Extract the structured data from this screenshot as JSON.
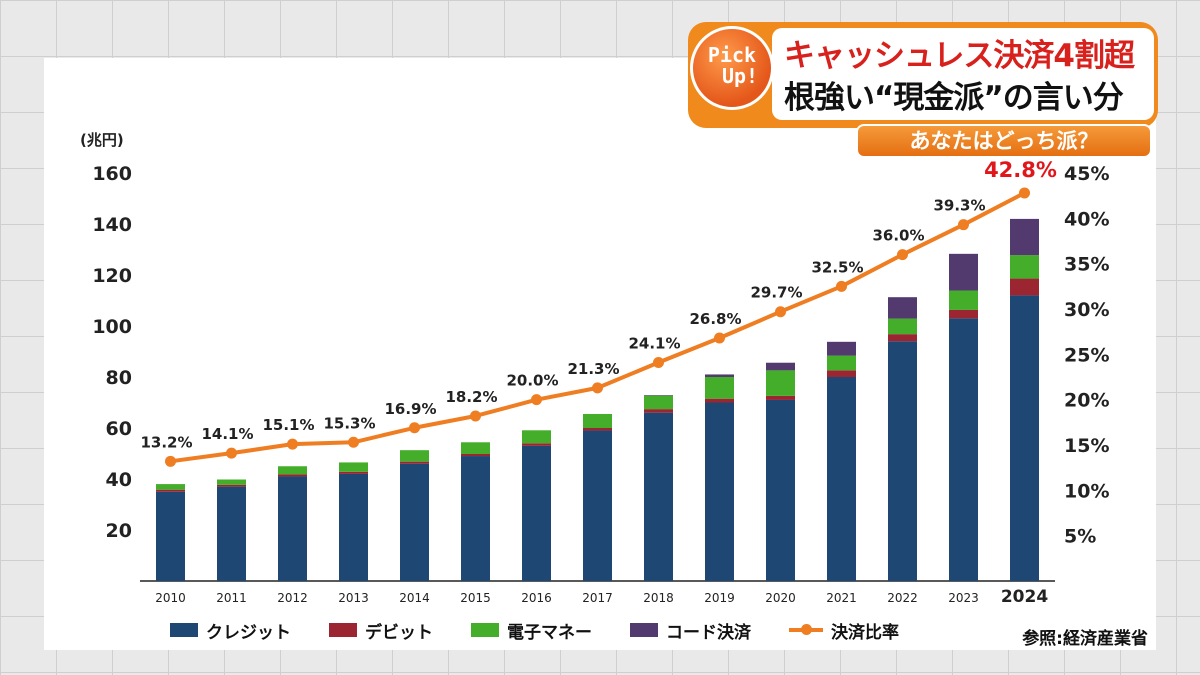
{
  "header": {
    "pickup_line1": "Pick",
    "pickup_line2": "Up!",
    "headline1": "キャッシュレス決済4割超",
    "headline2": "根強い“現金派”の言い分",
    "subheadline": "あなたはどっち派？"
  },
  "source": "参照:経済産業省",
  "colors": {
    "credit": "#1f4774",
    "debit": "#9b2530",
    "emoney": "#44ad2a",
    "code": "#52396e",
    "ratio": "#ef7d22",
    "highlight": "#e0161b",
    "accent_orange": "#f08a1c"
  },
  "chart_data": {
    "type": "bar",
    "stacked": true,
    "categories": [
      "2010",
      "2011",
      "2012",
      "2013",
      "2014",
      "2015",
      "2016",
      "2017",
      "2018",
      "2019",
      "2020",
      "2021",
      "2022",
      "2023",
      "2024"
    ],
    "series": [
      {
        "name": "クレジット",
        "values": [
          35,
          37,
          41,
          42,
          46,
          49,
          53,
          59,
          66,
          70,
          71,
          80,
          94,
          103,
          112
        ]
      },
      {
        "name": "デビット",
        "values": [
          0.8,
          0.7,
          0.8,
          0.8,
          0.8,
          0.8,
          1,
          1,
          1.4,
          1.5,
          1.6,
          2.6,
          2.8,
          3.3,
          6.6
        ]
      },
      {
        "name": "電子マネー",
        "values": [
          2.2,
          2.1,
          3.2,
          3.7,
          4.5,
          4.6,
          5.1,
          5.5,
          5.3,
          8.5,
          10,
          5.8,
          6.1,
          7.6,
          9.2
        ]
      },
      {
        "name": "コード決済",
        "values": [
          0,
          0,
          0,
          0,
          0,
          0,
          0,
          0,
          0.2,
          1,
          3,
          5.4,
          8.4,
          14.4,
          14.2
        ]
      }
    ],
    "line_series": {
      "name": "決済比率",
      "values": [
        13.2,
        14.1,
        15.1,
        15.3,
        16.9,
        18.2,
        20.0,
        21.3,
        24.1,
        26.8,
        29.7,
        32.5,
        36.0,
        39.3,
        42.8
      ],
      "labels": [
        "13.2%",
        "14.1%",
        "15.1%",
        "15.3%",
        "16.9%",
        "18.2%",
        "20.0%",
        "21.3%",
        "24.1%",
        "26.8%",
        "29.7%",
        "32.5%",
        "36.0%",
        "39.3%",
        "42.8%"
      ]
    },
    "ylabel_left": "(兆円)",
    "ylim_left": [
      0,
      160
    ],
    "yticks_left": [
      "20",
      "40",
      "60",
      "80",
      "100",
      "120",
      "140",
      "160"
    ],
    "ylim_right": [
      0,
      45
    ],
    "yticks_right": [
      "5%",
      "10%",
      "15%",
      "20%",
      "25%",
      "30%",
      "35%",
      "40%",
      "45%"
    ],
    "grid": false,
    "legend_position": "bottom",
    "highlight_category": "2024"
  }
}
